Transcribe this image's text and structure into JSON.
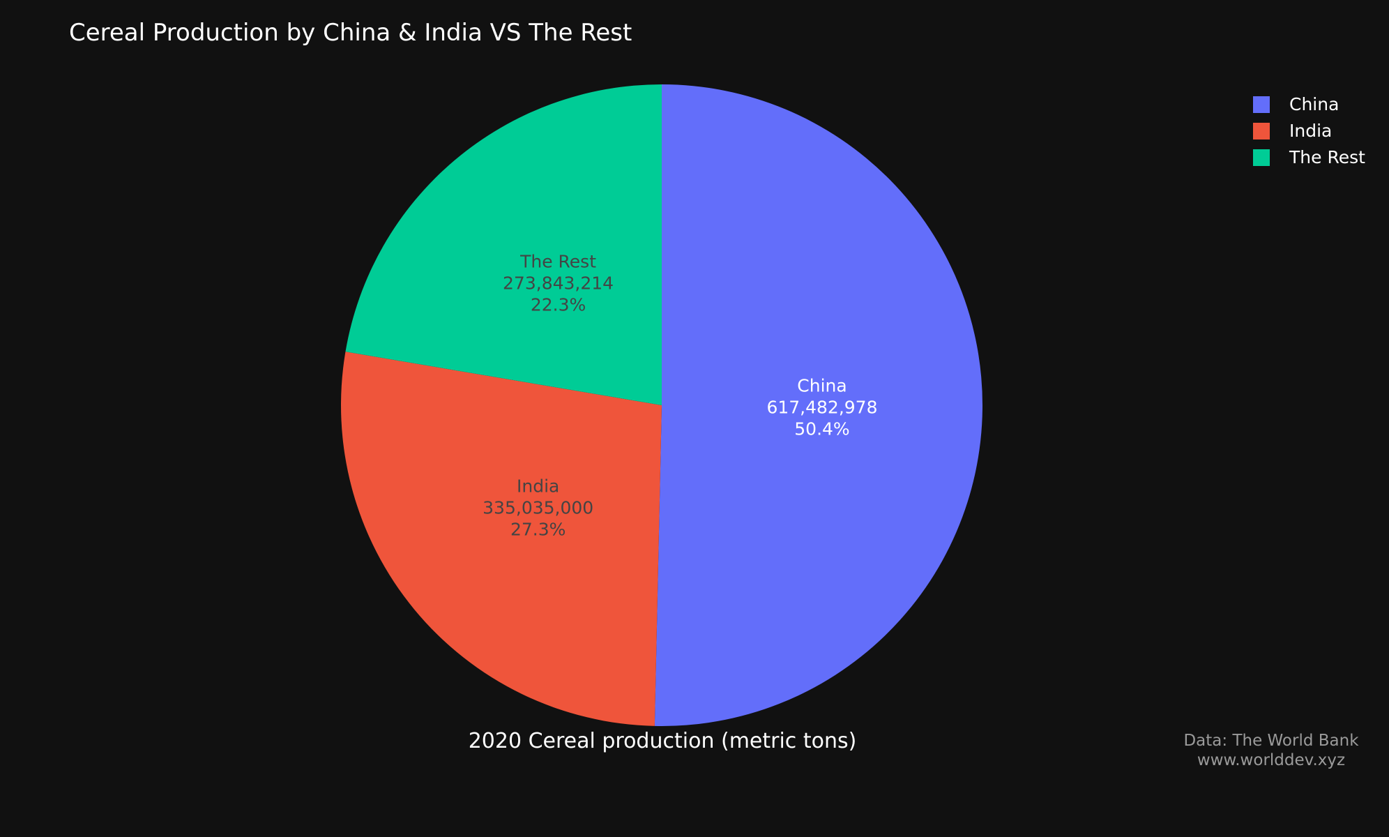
{
  "chart_data": {
    "type": "pie",
    "title": "Cereal Production by China & India VS The Rest",
    "label": "2020 Cereal production (metric tons)",
    "slices": [
      {
        "name": "China",
        "value": 617482978,
        "value_label": "617,482,978",
        "percent_label": "50.4%",
        "color": "#636efa",
        "text_color": "#ffffff"
      },
      {
        "name": "India",
        "value": 335035000,
        "value_label": "335,035,000",
        "percent_label": "27.3%",
        "color": "#ef553b",
        "text_color": "#444444"
      },
      {
        "name": "The Rest",
        "value": 273843214,
        "value_label": "273,843,214",
        "percent_label": "22.3%",
        "color": "#00cc96",
        "text_color": "#444444"
      }
    ],
    "direction": "clockwise",
    "legend_position": "top-right"
  },
  "source": {
    "line1": "Data: The World Bank",
    "line2": "www.worlddev.xyz"
  }
}
